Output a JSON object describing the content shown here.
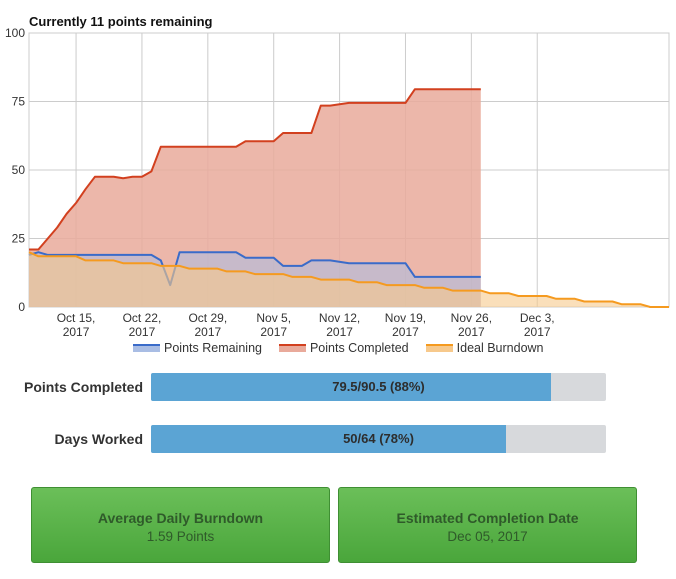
{
  "chart_title": "Currently 11 points remaining",
  "colors": {
    "remaining_line": "#3a6bc9",
    "remaining_fill": "#a9bde4",
    "completed_line": "#d2401f",
    "completed_fill": "#e9aa9b",
    "ideal_line": "#f59a1f",
    "ideal_fill": "#f7c98c",
    "grid": "#cccccc",
    "progress_fill": "#5ba4d4",
    "progress_track": "#d7d9dc",
    "stat_box": "#5cb34a"
  },
  "legend": [
    "Points Remaining",
    "Points Completed",
    "Ideal Burndown"
  ],
  "chart_data": {
    "type": "area",
    "title": "Currently 11 points remaining",
    "x_type": "date",
    "x_range": [
      "2017-10-10",
      "2017-12-17"
    ],
    "ylim": [
      0,
      100
    ],
    "y_ticks": [
      "0",
      "25",
      "50",
      "75",
      "100"
    ],
    "x_ticks": [
      {
        "date": "2017-10-15",
        "line1": "Oct 15,",
        "line2": "2017"
      },
      {
        "date": "2017-10-22",
        "line1": "Oct 22,",
        "line2": "2017"
      },
      {
        "date": "2017-10-29",
        "line1": "Oct 29,",
        "line2": "2017"
      },
      {
        "date": "2017-11-05",
        "line1": "Nov 5,",
        "line2": "2017"
      },
      {
        "date": "2017-11-12",
        "line1": "Nov 12,",
        "line2": "2017"
      },
      {
        "date": "2017-11-19",
        "line1": "Nov 19,",
        "line2": "2017"
      },
      {
        "date": "2017-11-26",
        "line1": "Nov 26,",
        "line2": "2017"
      },
      {
        "date": "2017-12-03",
        "line1": "Dec 3,",
        "line2": "2017"
      }
    ],
    "grid": true,
    "legend_position": "bottom",
    "series": [
      {
        "name": "Points Remaining",
        "x": [
          "2017-10-10",
          "2017-10-11",
          "2017-10-12",
          "2017-10-13",
          "2017-10-16",
          "2017-10-19",
          "2017-10-21",
          "2017-10-22",
          "2017-10-23",
          "2017-10-24",
          "2017-10-25",
          "2017-10-26",
          "2017-10-29",
          "2017-11-01",
          "2017-11-02",
          "2017-11-05",
          "2017-11-06",
          "2017-11-07",
          "2017-11-08",
          "2017-11-09",
          "2017-11-10",
          "2017-11-11",
          "2017-11-13",
          "2017-11-16",
          "2017-11-19",
          "2017-11-20",
          "2017-11-21",
          "2017-11-27"
        ],
        "values": [
          19,
          20,
          19,
          19,
          19,
          19,
          19,
          19,
          19,
          17,
          8,
          20,
          20,
          20,
          18,
          18,
          15,
          15,
          15,
          17,
          17,
          17,
          16,
          16,
          16,
          11,
          11,
          11
        ]
      },
      {
        "name": "Points Completed",
        "x": [
          "2017-10-10",
          "2017-10-11",
          "2017-10-12",
          "2017-10-13",
          "2017-10-14",
          "2017-10-15",
          "2017-10-16",
          "2017-10-17",
          "2017-10-19",
          "2017-10-20",
          "2017-10-21",
          "2017-10-22",
          "2017-10-23",
          "2017-10-24",
          "2017-10-25",
          "2017-10-26",
          "2017-10-29",
          "2017-11-01",
          "2017-11-02",
          "2017-11-05",
          "2017-11-06",
          "2017-11-07",
          "2017-11-08",
          "2017-11-09",
          "2017-11-10",
          "2017-11-11",
          "2017-11-13",
          "2017-11-16",
          "2017-11-19",
          "2017-11-20",
          "2017-11-21",
          "2017-11-27"
        ],
        "values": [
          21,
          21,
          25,
          29,
          34,
          38,
          43,
          47.5,
          47.5,
          47,
          47.5,
          47.5,
          49.5,
          58.5,
          58.5,
          58.5,
          58.5,
          58.5,
          60.5,
          60.5,
          63.5,
          63.5,
          63.5,
          63.5,
          73.5,
          73.5,
          74.5,
          74.5,
          74.5,
          79.5,
          79.5,
          79.5
        ]
      },
      {
        "name": "Ideal Burndown",
        "x": [
          "2017-10-10",
          "2017-10-11",
          "2017-10-12",
          "2017-10-15",
          "2017-10-16",
          "2017-10-19",
          "2017-10-20",
          "2017-10-23",
          "2017-10-24",
          "2017-10-26",
          "2017-10-27",
          "2017-10-30",
          "2017-10-31",
          "2017-11-02",
          "2017-11-03",
          "2017-11-06",
          "2017-11-07",
          "2017-11-09",
          "2017-11-10",
          "2017-11-13",
          "2017-11-14",
          "2017-11-16",
          "2017-11-17",
          "2017-11-20",
          "2017-11-21",
          "2017-11-23",
          "2017-11-24",
          "2017-11-27",
          "2017-11-28",
          "2017-11-30",
          "2017-12-01",
          "2017-12-04",
          "2017-12-05",
          "2017-12-07",
          "2017-12-08",
          "2017-12-11",
          "2017-12-12",
          "2017-12-14",
          "2017-12-15",
          "2017-12-17"
        ],
        "values": [
          20,
          18.5,
          18.5,
          18.5,
          17,
          17,
          16,
          16,
          15,
          15,
          14,
          14,
          13,
          13,
          12,
          12,
          11,
          11,
          10,
          10,
          9,
          9,
          8,
          8,
          7,
          7,
          6,
          6,
          5,
          5,
          4,
          4,
          3,
          3,
          2,
          2,
          1,
          1,
          0,
          0
        ]
      }
    ]
  },
  "metrics": [
    {
      "label": "Points Completed",
      "text": "79.5/90.5 (88%)",
      "fraction": 0.88
    },
    {
      "label": "Days Worked",
      "text": "50/64 (78%)",
      "fraction": 0.78
    }
  ],
  "stats": [
    {
      "title": "Average Daily Burndown",
      "value": "1.59 Points"
    },
    {
      "title": "Estimated Completion Date",
      "value": "Dec 05, 2017"
    }
  ]
}
